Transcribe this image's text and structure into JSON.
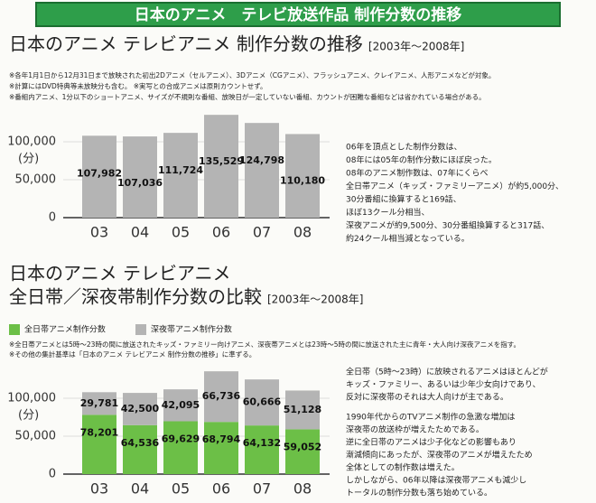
{
  "header": {
    "title": "日本のアニメ　テレビ放送作品 制作分数の推移"
  },
  "chart_data": [
    {
      "type": "bar",
      "title": "日本のアニメ テレビアニメ 制作分数の推移",
      "subtitle": "[2003年～2008年]",
      "notes": [
        "※各年1月1日から12月31日まで放映された初出2Dアニメ（セルアニメ）、3Dアニメ（CGアニメ）、フラッシュアニメ、クレイアニメ、人形アニメなどが対象。",
        "※計算にはDVD特典等未放映分も含む。 ※実写との合成アニメは原則カウントせず。",
        "※番組内アニメ、1分以下のショートアニメ、サイズが不規則な番組、放映日が一定していない番組、カウントが困難な番組などは省かれている場合がある。"
      ],
      "y_label": "(分)",
      "categories": [
        "03",
        "04",
        "05",
        "06",
        "07",
        "08"
      ],
      "values": [
        107982,
        107036,
        111724,
        135529,
        124798,
        110180
      ],
      "value_labels": [
        "107,982",
        "107,036",
        "111,724",
        "135,529",
        "124,798",
        "110,180"
      ],
      "color": "#b4b4b4",
      "ylim": [
        0,
        140000
      ],
      "yticks": [
        0,
        {
          "value": 50000,
          "label": "50,000"
        },
        {
          "value": 100000,
          "label": "100,000"
        }
      ],
      "grid": true,
      "description": [
        [
          "06年を頂点とした制作分数は、",
          "08年には05年の制作分数にほぼ戻った。",
          "08年のアニメ制作数は、07年にくらべ",
          "全日帯アニメ（キッズ・ファミリーアニメ）が約5,000分、",
          "30分番組に換算すると169話、",
          "ほぼ13クール分相当、",
          "深夜アニメが約9,500分、30分番組換算すると317話、",
          "約24クール相当減となっている。"
        ]
      ]
    },
    {
      "type": "bar",
      "stacked": true,
      "title": [
        "日本のアニメ テレビアニメ",
        "全日帯／深夜帯制作分数の比較"
      ],
      "subtitle": "[2003年～2008年]",
      "notes": [
        "※全日帯アニメとは5時～23時の間に放送されたキッズ・ファミリー向けアニメ、深夜帯アニメとは23時～5時の間に放送された主に青年・大人向け深夜アニメを指す。",
        "※その他の集計基準は「日本のアニメ テレビアニメ 制作分数の推移」に準ずる。"
      ],
      "y_label": "(分)",
      "categories": [
        "03",
        "04",
        "05",
        "06",
        "07",
        "08"
      ],
      "series": [
        {
          "name": "全日帯アニメ制作分数",
          "color": "#6cbf47",
          "values": [
            78201,
            64536,
            69629,
            68794,
            64132,
            59052
          ],
          "value_labels": [
            "78,201",
            "64,536",
            "69,629",
            "68,794",
            "64,132",
            "59,052"
          ]
        },
        {
          "name": "深夜帯アニメ制作分数",
          "color": "#b4b4b4",
          "values": [
            29781,
            42500,
            42095,
            66736,
            60666,
            51128
          ],
          "value_labels": [
            "29,781",
            "42,500",
            "42,095",
            "66,736",
            "60,666",
            "51,128"
          ]
        }
      ],
      "ylim": [
        0,
        140000
      ],
      "yticks": [
        0,
        {
          "value": 50000,
          "label": "50,000"
        },
        {
          "value": 100000,
          "label": "100,000"
        }
      ],
      "grid": true,
      "description": [
        [
          "全日帯（5時～23時）に放映されるアニメはほとんどが",
          "キッズ・ファミリー、あるいは少年少女向けであり、",
          "反対に深夜帯のそれは大人向けが主である。"
        ],
        [
          "1990年代からのTVアニメ制作の急激な増加は",
          "深夜帯の放送枠が増えたためである。",
          "逆に全日帯のアニメは少子化などの影響もあり",
          "漸減傾向にあったが、深夜帯のアニメが増えたため",
          "全体としての制作数は増えた。",
          "しかしながら、06年以降は深夜帯アニメも減少し",
          "トータルの制作分数も落ち始めている。"
        ]
      ]
    }
  ]
}
